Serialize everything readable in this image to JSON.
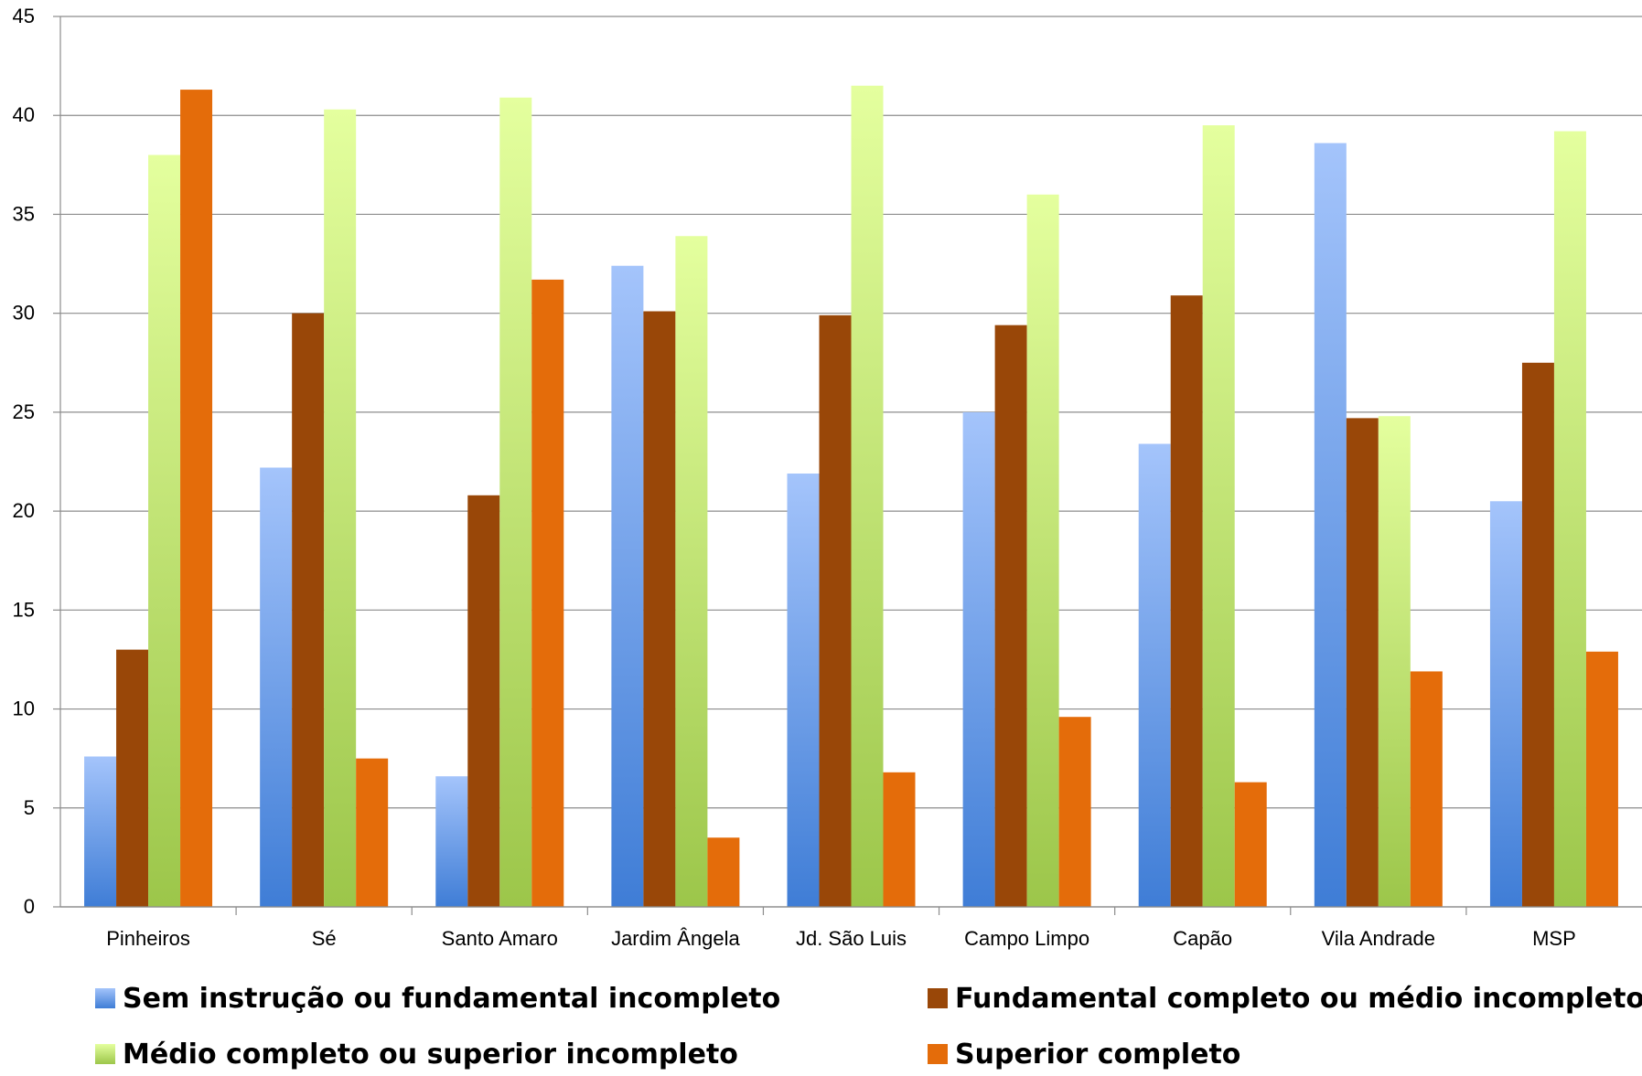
{
  "chart_data": {
    "type": "bar",
    "title": "",
    "xlabel": "",
    "ylabel": "",
    "ylim": [
      0,
      45
    ],
    "yticks": [
      0,
      5,
      10,
      15,
      20,
      25,
      30,
      35,
      40,
      45
    ],
    "grid": true,
    "legend_position": "bottom",
    "categories": [
      "Pinheiros",
      "Sé",
      "Santo Amaro",
      "Jardim Ângela",
      "Jd. São Luis",
      "Campo Limpo",
      "Capão",
      "Vila Andrade",
      "MSP"
    ],
    "series": [
      {
        "name": "Sem instrução ou fundamental incompleto",
        "color": "#7fa8e8",
        "values": [
          7.6,
          22.2,
          6.6,
          32.4,
          21.9,
          25.0,
          23.4,
          38.6,
          20.5
        ]
      },
      {
        "name": "Fundamental completo ou médio incompleto",
        "color": "#994708",
        "values": [
          13.0,
          30.0,
          20.8,
          30.1,
          29.9,
          29.4,
          30.9,
          24.7,
          27.5
        ]
      },
      {
        "name": "Médio completo ou superior incompleto",
        "color": "#c3e27e",
        "values": [
          38.0,
          40.3,
          40.9,
          33.9,
          41.5,
          36.0,
          39.5,
          24.8,
          39.2
        ]
      },
      {
        "name": "Superior completo",
        "color": "#e46c0a",
        "values": [
          41.3,
          7.5,
          31.7,
          3.5,
          6.8,
          9.6,
          6.3,
          11.9,
          12.9
        ]
      }
    ]
  }
}
